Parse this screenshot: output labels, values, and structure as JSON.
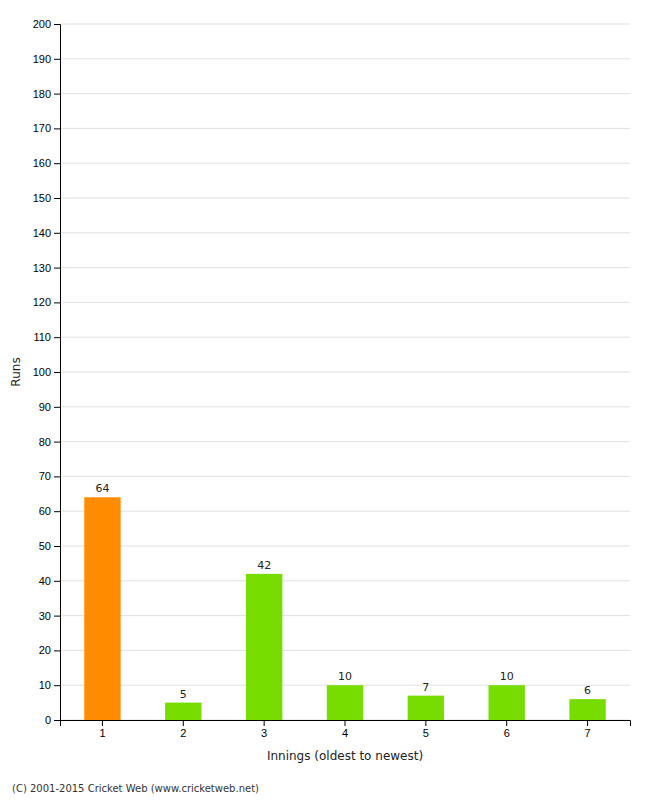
{
  "chart_data": {
    "type": "bar",
    "categories": [
      "1",
      "2",
      "3",
      "4",
      "5",
      "6",
      "7"
    ],
    "values": [
      64,
      5,
      42,
      10,
      7,
      10,
      6
    ],
    "colors": [
      "#FF8C00",
      "#77DD00",
      "#77DD00",
      "#77DD00",
      "#77DD00",
      "#77DD00",
      "#77DD00"
    ],
    "xlabel": "Innings (oldest to newest)",
    "ylabel": "Runs",
    "ylim": [
      0,
      200
    ],
    "yticks": [
      0,
      10,
      20,
      30,
      40,
      50,
      60,
      70,
      80,
      90,
      100,
      110,
      120,
      130,
      140,
      150,
      160,
      170,
      180,
      190,
      200
    ],
    "grid": true,
    "data_labels": true,
    "annotations": [
      "(C) 2001-2015 Cricket Web (www.cricketweb.net)"
    ]
  }
}
